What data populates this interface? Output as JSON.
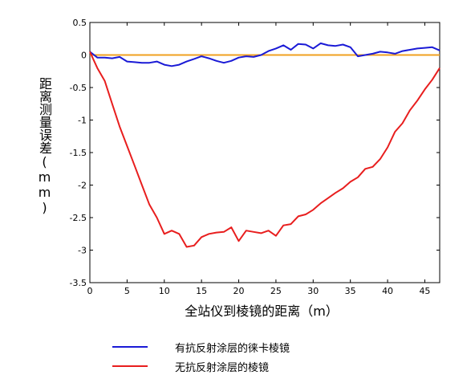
{
  "chart_data": {
    "type": "line",
    "title": "",
    "xlabel": "全站仪到棱镜的距离（m）",
    "ylabel": "距离测量误差(mm)",
    "xlim": [
      0,
      47
    ],
    "ylim": [
      -3.5,
      0.5
    ],
    "x_ticks": [
      0,
      5,
      10,
      15,
      20,
      25,
      30,
      35,
      40,
      45
    ],
    "y_ticks": [
      0.5,
      0,
      -0.5,
      -1,
      -1.5,
      -2,
      -2.5,
      -3,
      -3.5
    ],
    "grid": false,
    "legend_position": "bottom",
    "reference_line": {
      "y": 0,
      "color": "#f0a020"
    },
    "series": [
      {
        "name": "有抗反射涂层的徕卡棱镜",
        "color": "#1a1ad6",
        "x": [
          0,
          1,
          2,
          3,
          4,
          5,
          6,
          7,
          8,
          9,
          10,
          11,
          12,
          13,
          14,
          15,
          16,
          17,
          18,
          19,
          20,
          21,
          22,
          23,
          24,
          25,
          26,
          27,
          28,
          29,
          30,
          31,
          32,
          33,
          34,
          35,
          36,
          37,
          38,
          39,
          40,
          41,
          42,
          43,
          44,
          45,
          46,
          47
        ],
        "y": [
          0.05,
          -0.04,
          -0.04,
          -0.05,
          -0.03,
          -0.1,
          -0.11,
          -0.12,
          -0.12,
          -0.1,
          -0.15,
          -0.17,
          -0.15,
          -0.1,
          -0.06,
          -0.02,
          -0.05,
          -0.09,
          -0.12,
          -0.09,
          -0.04,
          -0.02,
          -0.03,
          0.0,
          0.06,
          0.1,
          0.15,
          0.08,
          0.17,
          0.16,
          0.1,
          0.18,
          0.15,
          0.14,
          0.16,
          0.12,
          -0.02,
          0.0,
          0.02,
          0.05,
          0.04,
          0.02,
          0.06,
          0.08,
          0.1,
          0.11,
          0.12,
          0.07
        ]
      },
      {
        "name": "无抗反射涂层的棱镜",
        "color": "#e81e1e",
        "x": [
          0,
          1,
          2,
          3,
          4,
          5,
          6,
          7,
          8,
          9,
          10,
          11,
          12,
          13,
          14,
          15,
          16,
          17,
          18,
          19,
          20,
          21,
          22,
          23,
          24,
          25,
          26,
          27,
          28,
          29,
          30,
          31,
          32,
          33,
          34,
          35,
          36,
          37,
          38,
          39,
          40,
          41,
          42,
          43,
          44,
          45,
          46,
          47
        ],
        "y": [
          0.05,
          -0.2,
          -0.4,
          -0.75,
          -1.1,
          -1.4,
          -1.7,
          -2.0,
          -2.3,
          -2.5,
          -2.75,
          -2.7,
          -2.75,
          -2.95,
          -2.93,
          -2.8,
          -2.75,
          -2.73,
          -2.72,
          -2.65,
          -2.86,
          -2.7,
          -2.72,
          -2.74,
          -2.7,
          -2.78,
          -2.62,
          -2.6,
          -2.48,
          -2.45,
          -2.38,
          -2.28,
          -2.2,
          -2.12,
          -2.05,
          -1.95,
          -1.88,
          -1.75,
          -1.72,
          -1.6,
          -1.42,
          -1.18,
          -1.05,
          -0.85,
          -0.7,
          -0.53,
          -0.38,
          -0.2
        ]
      }
    ]
  }
}
